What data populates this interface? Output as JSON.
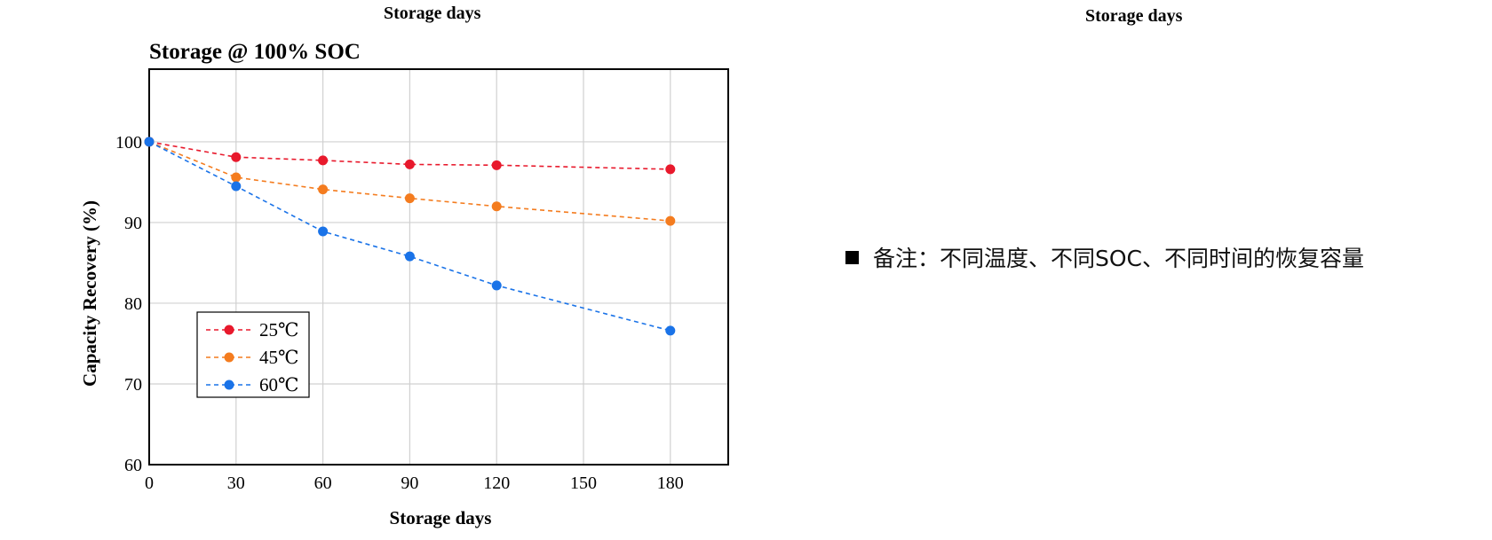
{
  "top_labels": {
    "left": "Storage days",
    "right": "Storage days"
  },
  "note": {
    "text": "备注：不同温度、不同SOC、不同时间的恢复容量"
  },
  "chart_data": {
    "type": "line",
    "title": "Storage @ 100% SOC",
    "xlabel": "Storage days",
    "ylabel": "Capacity Recovery (%)",
    "xlim": [
      0,
      200
    ],
    "ylim": [
      60,
      109
    ],
    "xticks": [
      0,
      30,
      60,
      90,
      120,
      150,
      180
    ],
    "yticks": [
      60,
      70,
      80,
      90,
      100
    ],
    "grid": true,
    "legend_position": "bottom-left",
    "series": [
      {
        "name": "25℃",
        "color": "#e8192c",
        "x": [
          0,
          30,
          60,
          90,
          120,
          180
        ],
        "y": [
          100,
          98.1,
          97.7,
          97.2,
          97.1,
          96.6
        ]
      },
      {
        "name": "45℃",
        "color": "#f47c1f",
        "x": [
          0,
          30,
          60,
          90,
          120,
          180
        ],
        "y": [
          100,
          95.6,
          94.1,
          93.0,
          92.0,
          90.2
        ]
      },
      {
        "name": "60℃",
        "color": "#1a73e8",
        "x": [
          0,
          30,
          60,
          90,
          120,
          180
        ],
        "y": [
          100,
          94.5,
          88.9,
          85.8,
          82.2,
          76.6
        ]
      }
    ]
  }
}
